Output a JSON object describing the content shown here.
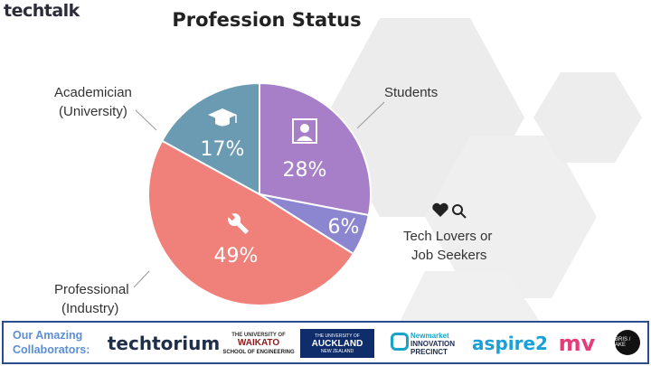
{
  "brand": {
    "name": "techtalk"
  },
  "chart_data": {
    "type": "pie",
    "title": "Profession Status",
    "slices": [
      {
        "label": "Students",
        "value": 28,
        "percent_label": "28%",
        "color": "#a67fc8",
        "icon": "person-portrait-icon"
      },
      {
        "label": "Tech Lovers or Job Seekers",
        "value": 6,
        "percent_label": "6%",
        "color": "#8c86d1",
        "icon": "heart-search-icons"
      },
      {
        "label": "Professional (Industry)",
        "value": 49,
        "percent_label": "49%",
        "color": "#f0807a",
        "icon": "wrench-icon"
      },
      {
        "label": "Academician (University)",
        "value": 17,
        "percent_label": "17%",
        "color": "#6b9bb3",
        "icon": "graduation-cap-icon"
      }
    ],
    "labels": {
      "students": "Students",
      "tech1": "Tech Lovers or",
      "tech2": "Job Seekers",
      "prof1": "Professional",
      "prof2": "(Industry)",
      "acad1": "Academician",
      "acad2": "(University)"
    }
  },
  "footer": {
    "collab_line1": "Our Amazing",
    "collab_line2": "Collaborators:",
    "logos": {
      "techtorium": "techtorium",
      "waikato_top": "THE UNIVERSITY OF",
      "waikato": "WAIKATO",
      "waikato_eng": "SCHOOL OF ENGINEERING",
      "auckland_top": "THE UNIVERSITY OF",
      "auckland": "AUCKLAND",
      "auckland_sub": "NEW ZEALAND",
      "innov_top": "Newmarket",
      "innov": "INNOVATION",
      "innov_sub": "PRECINCT",
      "aspire": "aspire2",
      "mv": "mv",
      "bris": "BRIS / AKE"
    }
  }
}
